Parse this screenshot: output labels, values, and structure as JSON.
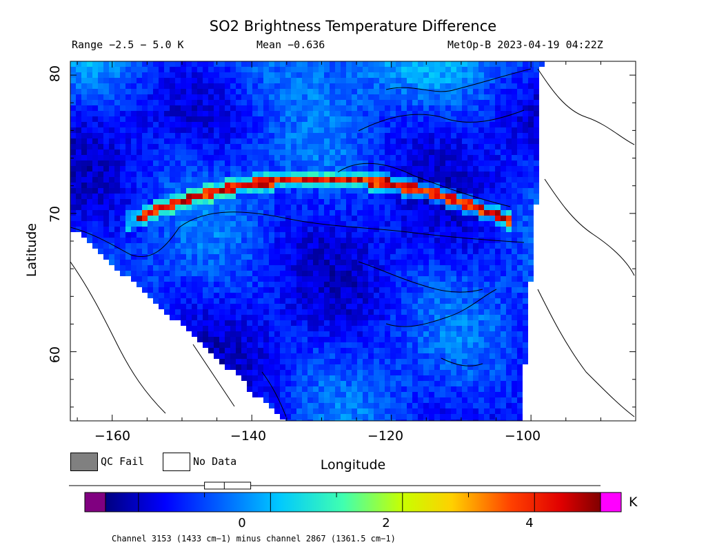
{
  "title": "SO2 Brightness Temperature Difference",
  "range_text": "Range −2.5 − 5.0 K",
  "mean_text": "Mean −0.636",
  "satellite_text": "MetOp-B 2023-04-19 04:22Z",
  "axes": {
    "ylabel": "Latitude",
    "xlabel": "Longitude",
    "x_ticks": [
      "−160",
      "−140",
      "−120",
      "−100"
    ],
    "x_tick_values": [
      -160,
      -140,
      -120,
      -100
    ],
    "y_ticks": [
      "60",
      "70",
      "80"
    ],
    "y_tick_values": [
      60,
      70,
      80
    ],
    "lon_range": [
      -166,
      -85
    ],
    "lat_range": [
      55,
      81
    ]
  },
  "legend": {
    "qc_fail": "QC Fail",
    "no_data": "No Data",
    "qc_fail_color": "#808080",
    "no_data_color": "#ffffff"
  },
  "colorbar": {
    "ticks": [
      "0",
      "2",
      "4"
    ],
    "tick_values": [
      0,
      2,
      4
    ],
    "range": [
      -2.5,
      5.0
    ],
    "unit": "K",
    "under_color": "#800080",
    "over_color": "#ff00ff",
    "box_plot": {
      "min": -2.4,
      "q1": -1.0,
      "median": -0.7,
      "q3": -0.3,
      "max": 5.0
    }
  },
  "footnote": "Channel 3153 (1433 cm−1) minus channel 2867 (1361.5 cm−1)"
}
